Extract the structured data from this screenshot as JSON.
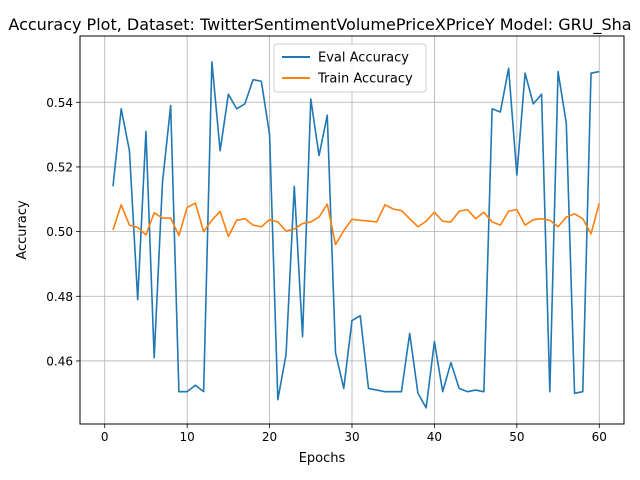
{
  "chart_data": {
    "type": "line",
    "title": "Accuracy Plot, Dataset: TwitterSentimentVolumePriceXPriceY Model: GRU_Sha",
    "xlabel": "Epochs",
    "ylabel": "Accuracy",
    "xlim": [
      -3,
      63
    ],
    "ylim": [
      0.4405,
      0.5605
    ],
    "xticks": [
      0,
      10,
      20,
      30,
      40,
      50,
      60
    ],
    "yticks": [
      0.46,
      0.48,
      0.5,
      0.52,
      0.54
    ],
    "ytick_labels": [
      "0.46",
      "0.48",
      "0.50",
      "0.52",
      "0.54"
    ],
    "grid": true,
    "legend_position": "top-center",
    "x": [
      1,
      2,
      3,
      4,
      5,
      6,
      7,
      8,
      9,
      10,
      11,
      12,
      13,
      14,
      15,
      16,
      17,
      18,
      19,
      20,
      21,
      22,
      23,
      24,
      25,
      26,
      27,
      28,
      29,
      30,
      31,
      32,
      33,
      34,
      35,
      36,
      37,
      38,
      39,
      40,
      41,
      42,
      43,
      44,
      45,
      46,
      47,
      48,
      49,
      50,
      51,
      52,
      53,
      54,
      55,
      56,
      57,
      58,
      59,
      60
    ],
    "series": [
      {
        "name": "Eval Accuracy",
        "color": "#1f77b4",
        "values": [
          0.514,
          0.538,
          0.525,
          0.479,
          0.531,
          0.461,
          0.515,
          0.539,
          0.4505,
          0.4505,
          0.4525,
          0.4505,
          0.5525,
          0.525,
          0.5425,
          0.538,
          0.5395,
          0.547,
          0.5465,
          0.53,
          0.448,
          0.462,
          0.514,
          0.4675,
          0.541,
          0.5235,
          0.536,
          0.4625,
          0.4515,
          0.4725,
          0.474,
          0.4515,
          0.451,
          0.4505,
          0.4505,
          0.4505,
          0.4685,
          0.45,
          0.4455,
          0.466,
          0.4505,
          0.4595,
          0.4515,
          0.4505,
          0.451,
          0.4505,
          0.538,
          0.537,
          0.5505,
          0.5175,
          0.549,
          0.5395,
          0.5425,
          0.4505,
          0.5495,
          0.5335,
          0.45,
          0.4505,
          0.549,
          0.5495
        ]
      },
      {
        "name": "Train Accuracy",
        "color": "#ff7f0e",
        "values": [
          0.5005,
          0.5083,
          0.502,
          0.5013,
          0.499,
          0.5058,
          0.5042,
          0.5042,
          0.4988,
          0.5075,
          0.5088,
          0.5,
          0.5035,
          0.5063,
          0.4985,
          0.5035,
          0.504,
          0.502,
          0.5015,
          0.5037,
          0.503,
          0.5002,
          0.5008,
          0.5025,
          0.503,
          0.5045,
          0.5085,
          0.496,
          0.5003,
          0.5038,
          0.5035,
          0.5033,
          0.503,
          0.5083,
          0.507,
          0.5065,
          0.504,
          0.5015,
          0.5032,
          0.506,
          0.5032,
          0.503,
          0.5063,
          0.5068,
          0.504,
          0.506,
          0.503,
          0.502,
          0.5063,
          0.5068,
          0.502,
          0.5037,
          0.504,
          0.5035,
          0.5015,
          0.5045,
          0.5055,
          0.504,
          0.4993,
          0.5088
        ]
      }
    ]
  }
}
